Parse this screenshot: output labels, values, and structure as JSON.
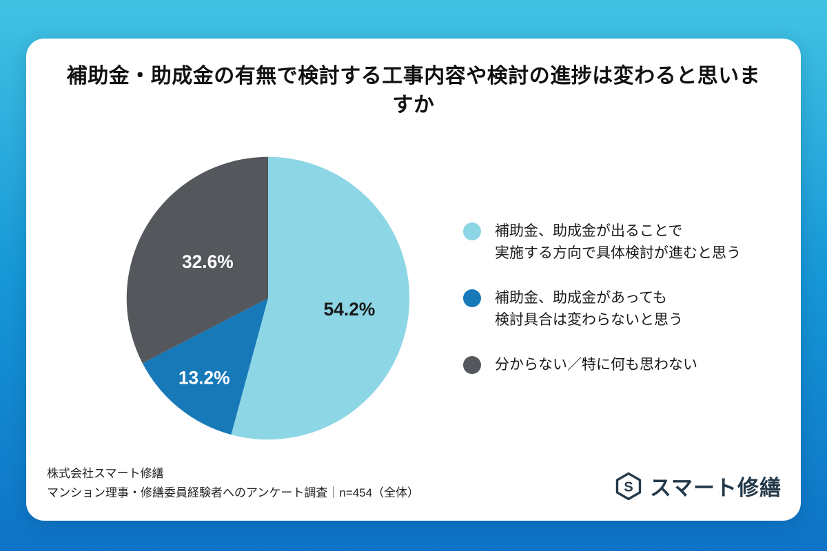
{
  "page": {
    "background_gradient": [
      "#41C2E3",
      "#1697D6",
      "#0E73C6"
    ]
  },
  "card": {
    "title": "補助金・助成金の有無で検討する工事内容や検討の進捗は変わると思いますか"
  },
  "chart_data": {
    "type": "pie",
    "title": "補助金・助成金の有無で検討する工事内容や検討の進捗は変わると思いますか",
    "start_angle_deg": 0,
    "direction": "clockwise",
    "value_suffix": "%",
    "legend_position": "right",
    "series": [
      {
        "name": "補助金、助成金が出ることで実施する方向で具体検討が進むと思う",
        "value": 54.2,
        "color": "#8DD6E5",
        "label_color": "#1A1A1A",
        "label_radius": 0.58
      },
      {
        "name": "補助金、助成金があっても検討具合は変わらないと思う",
        "value": 13.2,
        "color": "#1879B8",
        "label_color": "#FFFFFF",
        "label_radius": 0.72
      },
      {
        "name": "分からない／特に何も思わない",
        "value": 32.6,
        "color": "#54575C",
        "label_color": "#FFFFFF",
        "label_radius": 0.5
      }
    ]
  },
  "legend": {
    "items": [
      {
        "color": "#8DD6E5",
        "lines": [
          "補助金、助成金が出ることで",
          "実施する方向で具体検討が進むと思う"
        ]
      },
      {
        "color": "#1879B8",
        "lines": [
          "補助金、助成金があっても",
          "検討具合は変わらないと思う"
        ]
      },
      {
        "color": "#54575C",
        "lines": [
          "分からない／特に何も思わない"
        ]
      }
    ]
  },
  "footer": {
    "company": "株式会社スマート修繕",
    "survey_note": "マンション理事・修繕委員経験者へのアンケート調査｜n=454（全体）",
    "logo_text": "スマート修繕",
    "logo_color": "#24394A"
  }
}
